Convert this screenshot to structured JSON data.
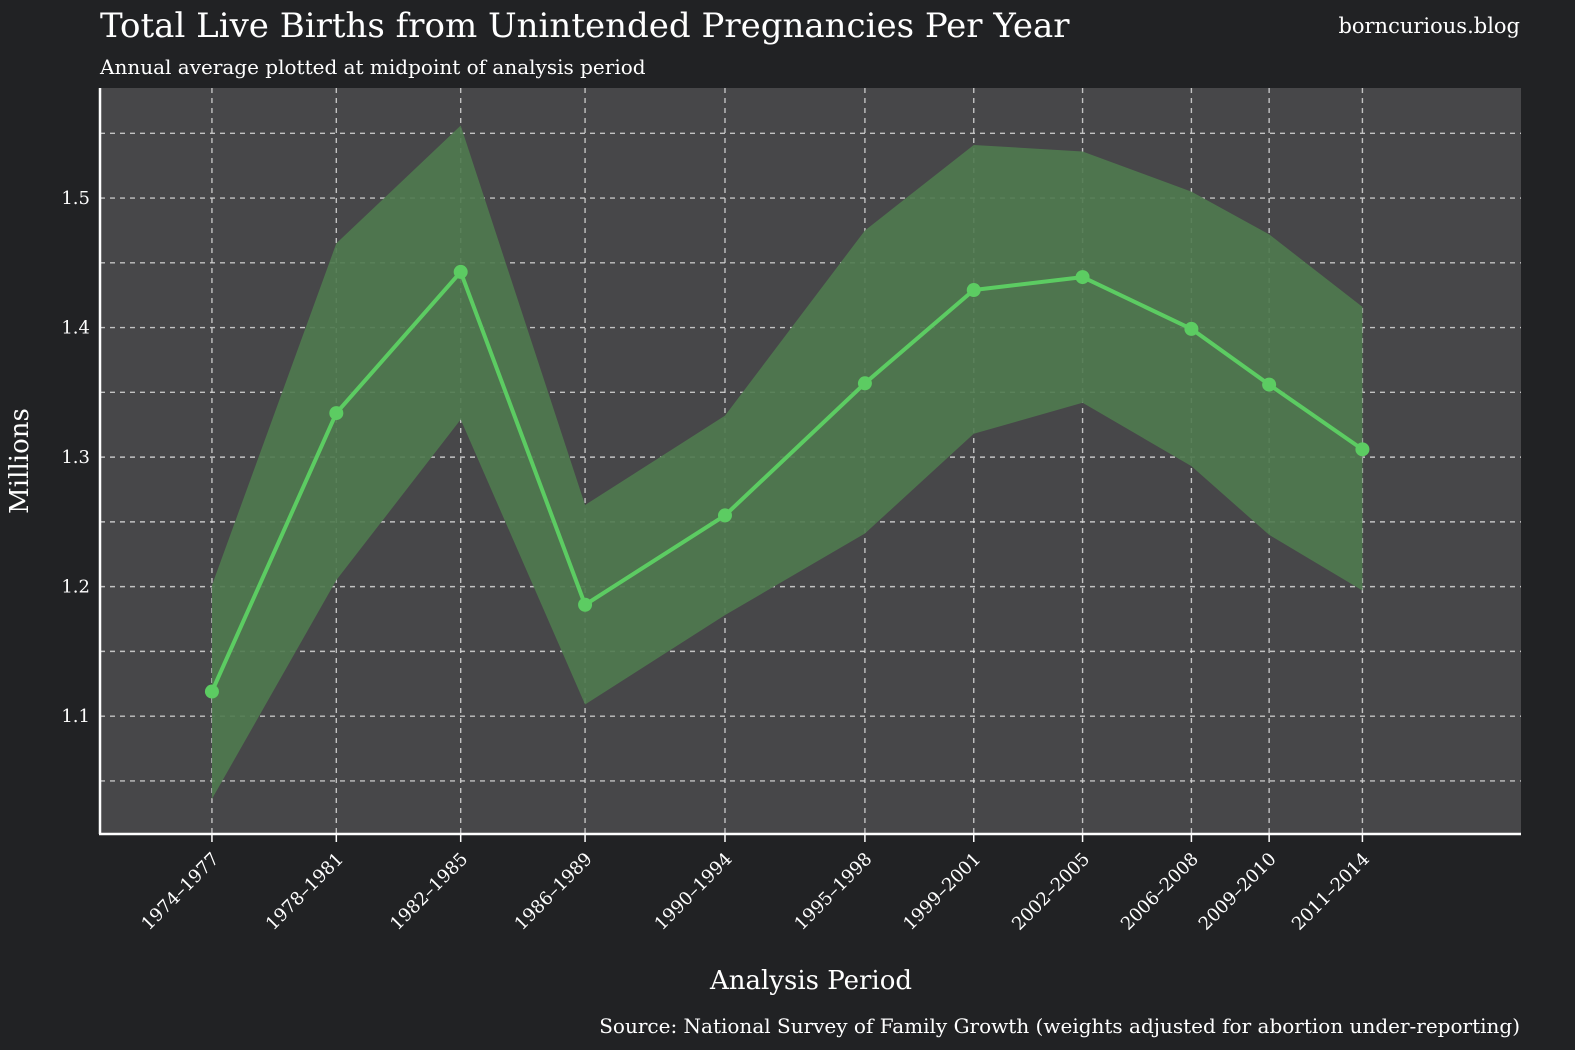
{
  "header": {
    "brand": "borncurious.blog"
  },
  "chart_data": {
    "type": "line",
    "title": "Total Live Births from Unintended Pregnancies Per Year",
    "subtitle": "Annual average plotted at midpoint of analysis period",
    "xlabel": "Analysis Period",
    "ylabel": "Millions",
    "source": "Source: National Survey of Family Growth (weights adjusted for abortion under-reporting)",
    "ylim": [
      1.009,
      1.585
    ],
    "xlim": [
      1971.9,
      2017.6
    ],
    "yticks": [
      1.1,
      1.2,
      1.3,
      1.4,
      1.5
    ],
    "ytick_labels": [
      "1.1",
      "1.2",
      "1.3",
      "1.4",
      "1.5"
    ],
    "minor_gridlines": [
      1.05,
      1.15,
      1.25,
      1.35,
      1.45,
      1.55
    ],
    "grid": true,
    "categories": [
      "1974–1977",
      "1978–1981",
      "1982–1985",
      "1986–1989",
      "1990–1994",
      "1995–1998",
      "1999–2001",
      "2002–2005",
      "2006–2008",
      "2009–2010",
      "2011–2014"
    ],
    "x": [
      1975.5,
      1979.5,
      1983.5,
      1987.5,
      1992.0,
      1996.5,
      2000.0,
      2003.5,
      2007.0,
      2009.5,
      2012.5
    ],
    "series": [
      {
        "name": "Total live births from unintended pregnancies",
        "color": "#5ccc62",
        "values": [
          1.119,
          1.334,
          1.443,
          1.186,
          1.255,
          1.357,
          1.429,
          1.439,
          1.399,
          1.356,
          1.306
        ],
        "ci_lower": [
          1.036,
          1.205,
          1.329,
          1.109,
          1.178,
          1.241,
          1.318,
          1.342,
          1.293,
          1.24,
          1.197
        ],
        "ci_upper": [
          1.201,
          1.465,
          1.556,
          1.263,
          1.332,
          1.475,
          1.541,
          1.536,
          1.505,
          1.472,
          1.416
        ],
        "band_color": "#4f7a4f"
      }
    ]
  }
}
